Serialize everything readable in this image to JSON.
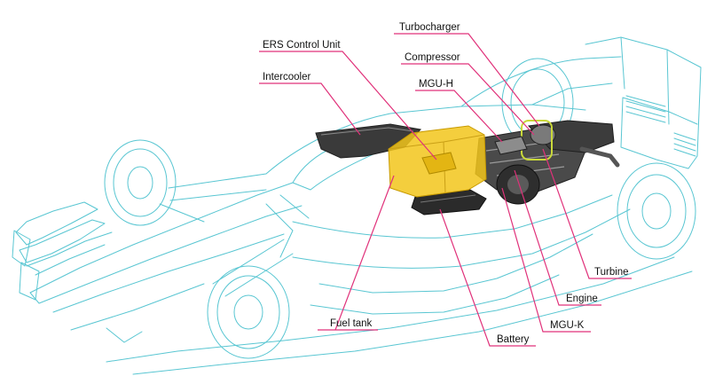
{
  "colors": {
    "outline": "#59c6d2",
    "leader": "#e0317a",
    "component_dark": "#2b2b2b",
    "component_mid": "#6e6e6e",
    "fuel_tank": "#f2c51b",
    "highlight_ring": "#c9d83a",
    "label_text": "#111111"
  },
  "labels": {
    "turbocharger": "Turbocharger",
    "ers_control_unit": "ERS Control Unit",
    "compressor": "Compressor",
    "intercooler": "Intercooler",
    "mgu_h": "MGU-H",
    "turbine": "Turbine",
    "engine": "Engine",
    "fuel_tank": "Fuel tank",
    "mgu_k": "MGU-K",
    "battery": "Battery"
  }
}
